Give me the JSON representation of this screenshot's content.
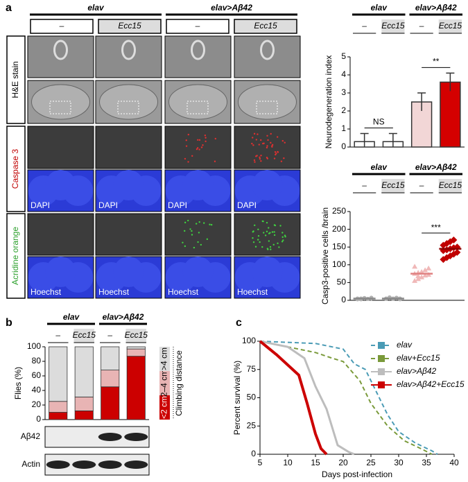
{
  "panel_labels": [
    "a",
    "b",
    "c"
  ],
  "image_grid": {
    "groups": [
      "elav",
      "elav>Aβ42"
    ],
    "categories": [
      "–",
      "Ecc15",
      "–",
      "Ecc15"
    ],
    "row_labels": [
      "H&E stain",
      "Caspase 3",
      "Acridine orange"
    ],
    "row_label_colors": [
      "#000000",
      "#c00000",
      "#2ca02c"
    ],
    "dapi_labels": [
      "DAPI",
      "DAPI",
      "DAPI",
      "DAPI"
    ],
    "hoechst_labels": [
      "Hoechst",
      "Hoechst",
      "Hoechst",
      "Hoechst"
    ]
  },
  "blot": {
    "labels": [
      "Aβ42",
      "Actin"
    ]
  },
  "chart_data": [
    {
      "type": "bar",
      "groups": [
        "elav",
        "elav>Aβ42"
      ],
      "categories": [
        "–",
        "Ecc15",
        "–",
        "Ecc15"
      ],
      "y_label": "Neurodegeneration index",
      "values": [
        0.3,
        0.3,
        2.5,
        3.6
      ],
      "errors": [
        0.45,
        0.45,
        0.5,
        0.5
      ],
      "colors": [
        "#ffffff",
        "#ffffff",
        "#f2d6d6",
        "#d40000"
      ],
      "ylim": [
        0,
        5
      ],
      "yticks": [
        0,
        1,
        2,
        3,
        4,
        5
      ],
      "annotations": [
        "NS",
        "**"
      ]
    },
    {
      "type": "dot",
      "groups": [
        "elav",
        "elav>Aβ42"
      ],
      "categories": [
        "–",
        "Ecc15",
        "–",
        "Ecc15"
      ],
      "y_label": "Casp3-positive cells /brain",
      "points": [
        [
          3,
          5,
          6,
          4,
          7,
          5,
          3,
          6,
          4,
          5
        ],
        [
          4,
          6,
          5,
          7,
          3,
          5,
          8,
          4,
          6,
          5
        ],
        [
          55,
          60,
          65,
          70,
          72,
          75,
          78,
          80,
          85,
          90,
          95,
          68
        ],
        [
          115,
          120,
          125,
          130,
          135,
          140,
          142,
          145,
          148,
          150,
          155,
          160,
          165,
          170
        ]
      ],
      "means": [
        5,
        5,
        75,
        145
      ],
      "colors": [
        "#b0b0b0",
        "#b0b0b0",
        "#f0b8b8",
        "#c00000"
      ],
      "ylim": [
        0,
        250
      ],
      "yticks": [
        0,
        50,
        100,
        150,
        200,
        250
      ],
      "annotations": [
        "***"
      ]
    },
    {
      "type": "stacked_bar",
      "groups": [
        "elav",
        "elav>Aβ42"
      ],
      "categories": [
        "–",
        "Ecc15",
        "–",
        "Ecc15"
      ],
      "y_label": "Flies (%)",
      "series": [
        {
          "name": "<2 cm",
          "color": "#cc0000",
          "values": [
            10,
            12,
            45,
            87
          ]
        },
        {
          "name": "2–4 cm",
          "color": "#e8b4b4",
          "values": [
            15,
            19,
            23,
            10
          ]
        },
        {
          "name": ">4 cm",
          "color": "#dcdcdc",
          "values": [
            75,
            69,
            32,
            3
          ]
        }
      ],
      "legend_title": "Climbing distance",
      "ylim": [
        0,
        100
      ],
      "yticks": [
        0,
        20,
        40,
        60,
        80,
        100
      ]
    },
    {
      "type": "line",
      "x_label": "Days post-infection",
      "y_label": "Percent survival (%)",
      "series": [
        {
          "name": "elav",
          "color": "#4a9bb5",
          "style": "dashed",
          "x": [
            5,
            10,
            15,
            17,
            20,
            22,
            24,
            26,
            28,
            30,
            33,
            36,
            37
          ],
          "values": [
            100,
            99,
            98,
            96,
            93,
            80,
            75,
            55,
            35,
            20,
            10,
            3,
            0
          ]
        },
        {
          "name": "elav+Ecc15",
          "color": "#7a9a3a",
          "style": "dashed",
          "x": [
            5,
            10,
            15,
            18,
            20,
            23,
            25,
            28,
            31,
            34,
            36
          ],
          "values": [
            100,
            95,
            90,
            85,
            82,
            65,
            45,
            25,
            12,
            5,
            0
          ]
        },
        {
          "name": "elav>Aβ42",
          "color": "#bdbdbd",
          "style": "solid",
          "x": [
            5,
            10,
            13,
            15,
            17,
            19,
            21,
            22
          ],
          "values": [
            100,
            95,
            85,
            60,
            40,
            8,
            2,
            0
          ]
        },
        {
          "name": "elav>Aβ42+Ecc15",
          "color": "#cc0000",
          "style": "bold",
          "x": [
            5,
            8,
            12,
            13.5,
            15,
            16,
            17
          ],
          "values": [
            100,
            88,
            70,
            45,
            18,
            5,
            0
          ]
        }
      ],
      "xlim": [
        5,
        40
      ],
      "xticks": [
        5,
        10,
        15,
        20,
        25,
        30,
        35,
        40
      ],
      "ylim": [
        0,
        100
      ],
      "yticks": [
        0,
        25,
        50,
        75,
        100
      ]
    }
  ]
}
